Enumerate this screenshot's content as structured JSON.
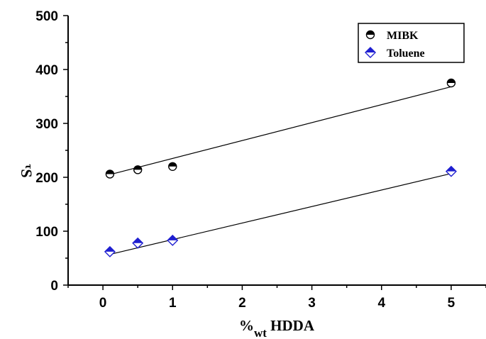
{
  "chart_data": {
    "type": "scatter",
    "xlabel": {
      "main": "%",
      "sub": "wt",
      "rest": " HDDA"
    },
    "ylabel": {
      "main": "τ",
      "rest": "S"
    },
    "xlim": [
      -0.5,
      5.5
    ],
    "ylim": [
      0,
      500
    ],
    "xticks": [
      0,
      1,
      2,
      3,
      4,
      5
    ],
    "yticks": [
      0,
      100,
      200,
      300,
      400,
      500
    ],
    "grid": false,
    "legend_position": "top-right",
    "series": [
      {
        "name": "MIBK",
        "marker": "half-filled-circle",
        "color": "#000000",
        "x": [
          0.1,
          0.5,
          1,
          5
        ],
        "y": [
          206,
          214,
          220,
          375
        ],
        "fit": {
          "x": [
            0.1,
            5
          ],
          "y": [
            205,
            368
          ]
        }
      },
      {
        "name": "Toluene",
        "marker": "half-filled-diamond",
        "color": "#1f1fd0",
        "x": [
          0.1,
          0.5,
          1,
          5
        ],
        "y": [
          62,
          78,
          83,
          211
        ],
        "fit": {
          "x": [
            0.1,
            5
          ],
          "y": [
            57,
            207
          ]
        }
      }
    ]
  }
}
